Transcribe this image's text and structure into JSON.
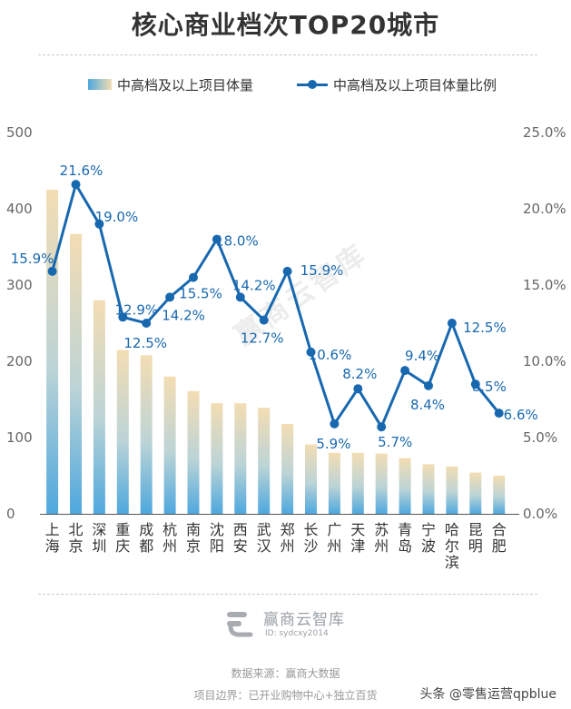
{
  "title": "核心商业档次TOP20城市",
  "legend": {
    "bar_label": "中高档及以上项目体量",
    "line_label": "中高档及以上项目体量比例"
  },
  "watermark": "赢商云智库",
  "logo": {
    "name": "赢商云智库",
    "id_text": "ID: sydcxy2014"
  },
  "footer": {
    "source": "数据来源：赢商大数据",
    "scope": "项目边界：已开业购物中心+独立百货"
  },
  "signature": "头条 @零售运营qpblue",
  "colors": {
    "line": "#1868b0",
    "bar_top": "#f3ddb3",
    "bar_bottom": "#4ea8de",
    "axis_text": "#666666"
  },
  "chart_data": {
    "type": "bar",
    "categories": [
      "上海",
      "北京",
      "深圳",
      "重庆",
      "成都",
      "杭州",
      "南京",
      "沈阳",
      "西安",
      "武汉",
      "郑州",
      "长沙",
      "广州",
      "天津",
      "苏州",
      "青岛",
      "宁波",
      "哈尔滨",
      "昆明",
      "合肥"
    ],
    "series": [
      {
        "name": "中高档及以上项目体量",
        "type": "bar",
        "axis": "left",
        "values": [
          425,
          367,
          280,
          215,
          208,
          180,
          161,
          145,
          145,
          139,
          118,
          91,
          80,
          80,
          79,
          73,
          65,
          62,
          54,
          50
        ]
      },
      {
        "name": "中高档及以上项目体量比例",
        "type": "line",
        "axis": "right",
        "values": [
          15.9,
          21.6,
          19.0,
          12.9,
          12.5,
          14.2,
          15.5,
          18.0,
          14.2,
          12.7,
          15.9,
          10.6,
          5.9,
          8.2,
          5.7,
          9.4,
          8.4,
          12.5,
          8.5,
          6.6
        ],
        "labels": [
          "15.9%",
          "21.6%",
          "19.0%",
          "12.9%",
          "12.5%",
          "14.2%",
          "15.5%",
          "18.0%",
          "14.2%",
          "12.7%",
          "15.9%",
          "10.6%",
          "5.9%",
          "8.2%",
          "5.7%",
          "9.4%",
          "8.4%",
          "12.5%",
          "8.5%",
          "6.6%"
        ]
      }
    ],
    "y_left": {
      "range": [
        0,
        500
      ],
      "ticks": [
        "0",
        "100",
        "200",
        "300",
        "400",
        "500"
      ]
    },
    "y_right": {
      "range": [
        0,
        25
      ],
      "ticks": [
        "0.0%",
        "5.0%",
        "10.0%",
        "15.0%",
        "20.0%",
        "25.0%"
      ]
    },
    "grid": false,
    "legend_position": "top"
  }
}
